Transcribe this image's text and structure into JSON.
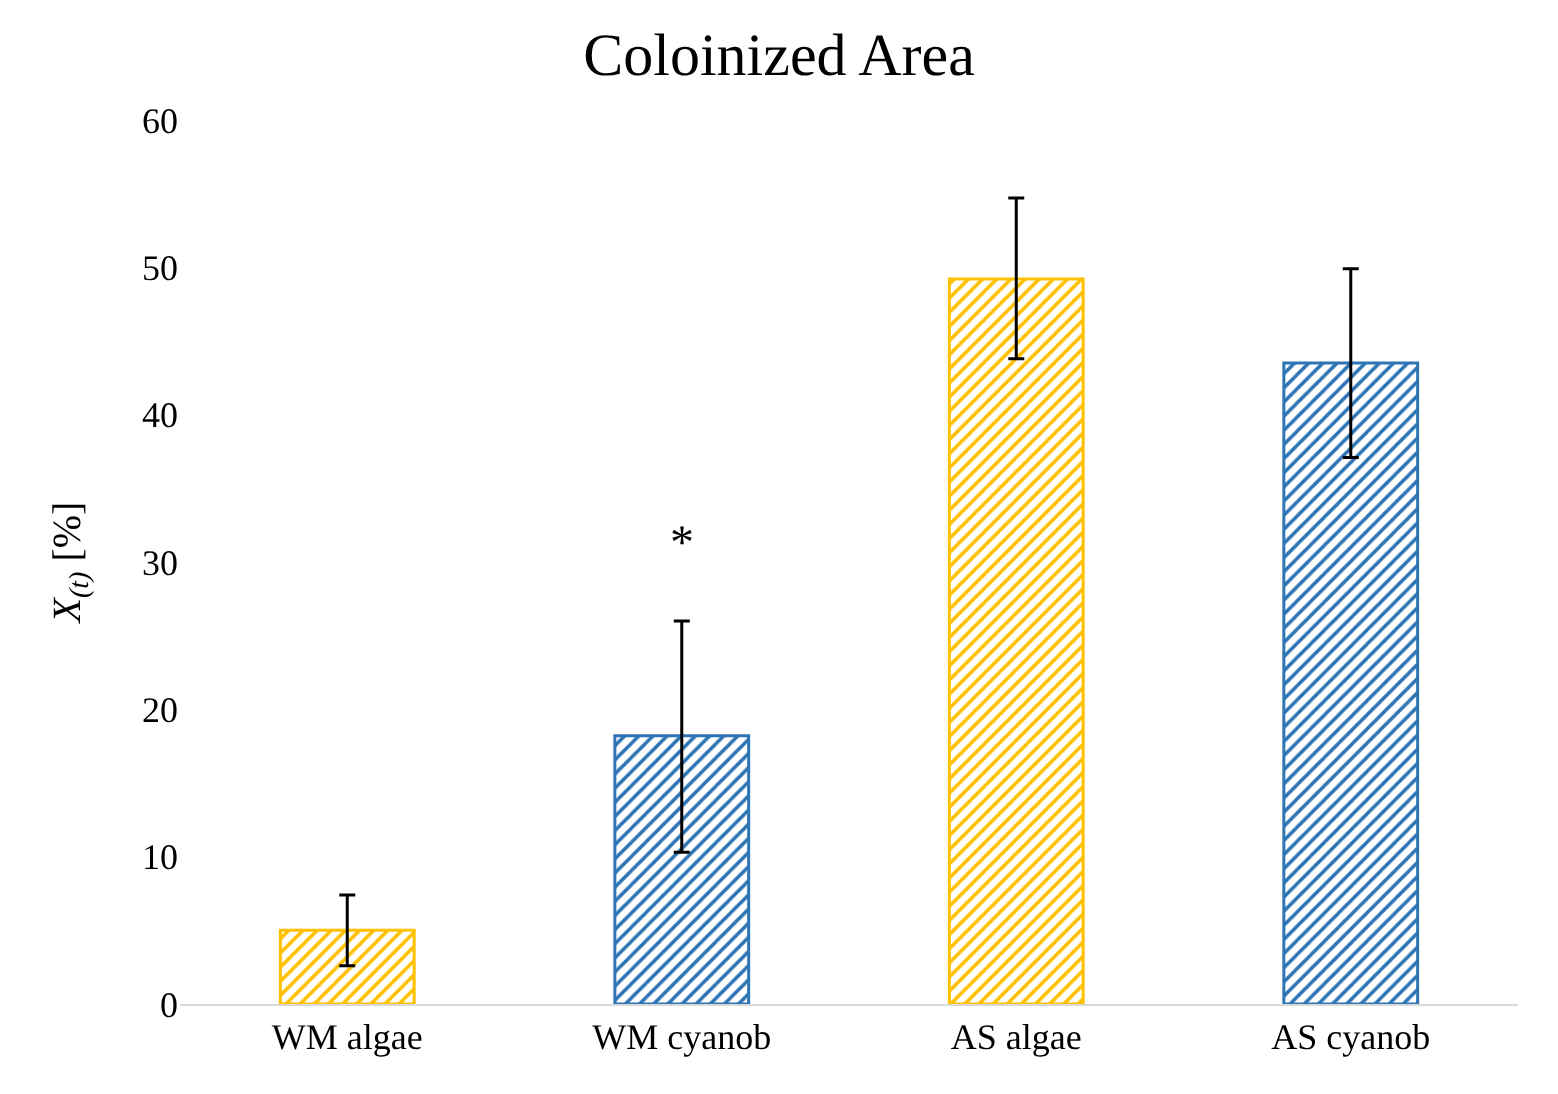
{
  "chart_data": {
    "type": "bar",
    "title": "Coloinized Area",
    "ylabel": "X$_{(t)}$ [%]",
    "categories": [
      "WM algae",
      "WM cyanob",
      "AS algae",
      "AS cyanob"
    ],
    "values": [
      5.0,
      18.2,
      49.2,
      43.5
    ],
    "colors": [
      "#ffc000",
      "#2e75b6",
      "#ffc000",
      "#2e75b6"
    ],
    "errors": [
      [
        2.6,
        7.4
      ],
      [
        10.3,
        26.0
      ],
      [
        43.8,
        54.7
      ],
      [
        37.1,
        49.9
      ]
    ],
    "ylim": [
      0,
      60
    ],
    "yticks": [
      0,
      10,
      20,
      30,
      40,
      50,
      60
    ],
    "grid": false,
    "annotations": [
      "*"
    ]
  }
}
